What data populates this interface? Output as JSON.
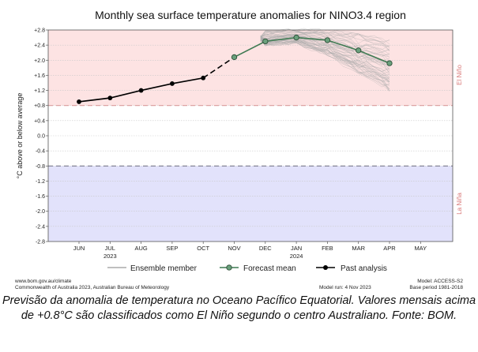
{
  "chart_data": {
    "type": "line",
    "title": "Monthly sea surface temperature anomalies for NINO3.4 region",
    "ylabel": "°C above or below average",
    "ylim": [
      -2.8,
      2.8
    ],
    "y_ticks": [
      "+2.8",
      "+2.4",
      "+2.0",
      "+1.6",
      "+1.2",
      "+0.8",
      "+0.4",
      "0.0",
      "-0.4",
      "-0.8",
      "-1.2",
      "-1.6",
      "-2.0",
      "-2.4",
      "-2.8"
    ],
    "y_tick_values": [
      2.8,
      2.4,
      2.0,
      1.6,
      1.2,
      0.8,
      0.4,
      0.0,
      -0.4,
      -0.8,
      -1.2,
      -1.6,
      -2.0,
      -2.4,
      -2.8
    ],
    "categories": [
      "JUN",
      "JUL",
      "AUG",
      "SEP",
      "OCT",
      "NOV",
      "DEC",
      "JAN",
      "FEB",
      "MAR",
      "APR",
      "MAY"
    ],
    "year_labels": [
      {
        "under": "JUL",
        "text": "2023"
      },
      {
        "under": "JAN",
        "text": "2024"
      }
    ],
    "el_nino_threshold": 0.8,
    "la_nina_threshold": -0.8,
    "region_labels": {
      "el_nino": "El Niño",
      "la_nina": "La Niña"
    },
    "series": [
      {
        "name": "Past analysis",
        "color": "#000000",
        "points": [
          {
            "x": "JUN",
            "y": 0.9
          },
          {
            "x": "JUL",
            "y": 1.0
          },
          {
            "x": "AUG",
            "y": 1.2
          },
          {
            "x": "SEP",
            "y": 1.38
          },
          {
            "x": "OCT",
            "y": 1.53
          }
        ]
      },
      {
        "name": "Forecast mean",
        "color": "#3f7a52",
        "points": [
          {
            "x": "NOV",
            "y": 2.08
          },
          {
            "x": "DEC",
            "y": 2.5
          },
          {
            "x": "JAN",
            "y": 2.6
          },
          {
            "x": "FEB",
            "y": 2.53
          },
          {
            "x": "MAR",
            "y": 2.26
          },
          {
            "x": "APR",
            "y": 1.92
          }
        ]
      },
      {
        "name": "Ensemble member",
        "color": "#aaaaaa",
        "spread": {
          "months": [
            "DEC",
            "JAN",
            "FEB",
            "MAR",
            "APR"
          ],
          "low": [
            2.38,
            2.45,
            2.12,
            1.65,
            1.18
          ],
          "high": [
            2.78,
            2.8,
            2.8,
            2.7,
            2.55
          ]
        }
      }
    ],
    "legend": {
      "position": "bottom",
      "items": [
        "Ensemble member",
        "Forecast mean",
        "Past analysis"
      ]
    },
    "colors": {
      "el_nino_band": "#fde3e3",
      "la_nina_band": "#e2e2fb",
      "threshold_line": "#d99a9a",
      "la_nina_threshold_line": "#7a7a8c",
      "forecast": "#3f7a52",
      "forecast_marker": "#6aa07c",
      "past": "#000000",
      "ensemble": "#aaaaaa"
    }
  },
  "footer": {
    "left_line1": "www.bom.gov.au/climate",
    "left_line2": "Commonwealth of Australia 2023, Australian Bureau of Meteorology",
    "middle": "Model run: 4 Nov 2023",
    "right_line1": "Model: ACCESS-S2",
    "right_line2": "Base period 1981-2018"
  },
  "caption": "Previsão da anomalia de temperatura no Oceano Pacífico Equatorial. Valores mensais acima de +0.8°C são classificados como El Niño segundo o centro Australiano. Fonte: BOM."
}
